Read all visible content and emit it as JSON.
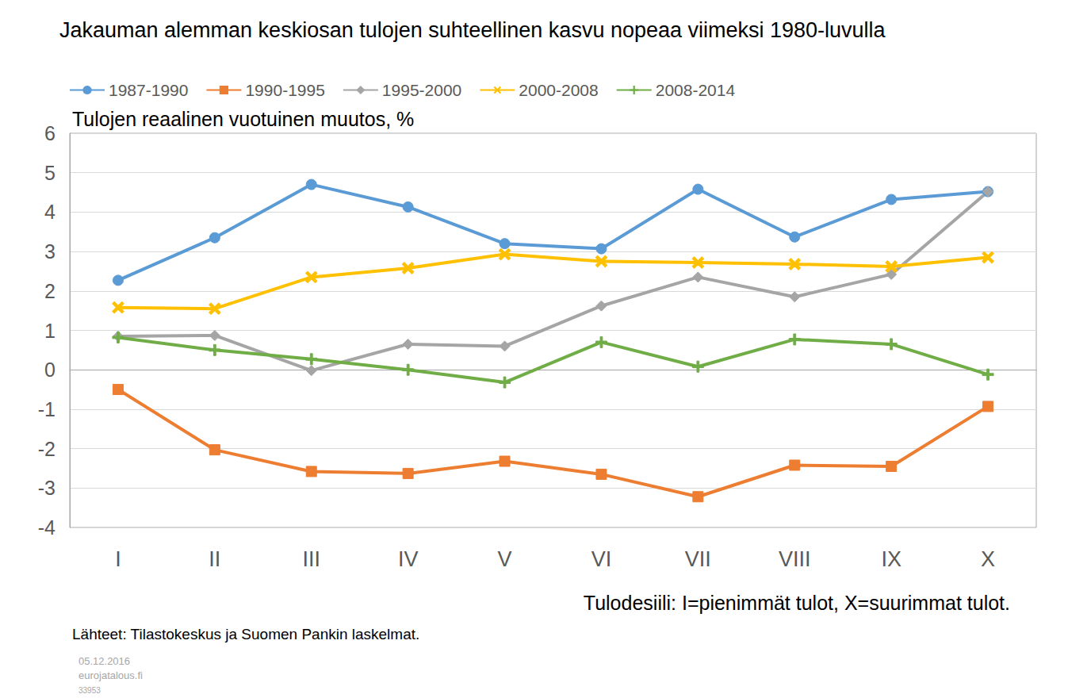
{
  "chart_data": {
    "type": "line",
    "title": "Jakauman alemman keskiosan tulojen suhteellinen kasvu nopeaa viimeksi 1980-luvulla",
    "y_label": "Tulojen reaalinen vuotuinen muutos, %",
    "x_label": "Tulodesiili: I=pienimmät tulot, X=suurimmat tulot.",
    "annotations": [
      "Lähteet: Tilastokeskus ja Suomen Pankin laskelmat.",
      "05.12.2016",
      "eurojatalous.fi",
      "33953"
    ],
    "categories": [
      "I",
      "II",
      "III",
      "IV",
      "V",
      "VI",
      "VII",
      "VIII",
      "IX",
      "X"
    ],
    "series": [
      {
        "name": "1987-1990",
        "color": "#5B9BD5",
        "marker": "circle",
        "values": [
          2.27,
          3.35,
          4.7,
          4.13,
          3.2,
          3.07,
          4.58,
          3.37,
          4.32,
          4.52
        ]
      },
      {
        "name": "1990-1995",
        "color": "#ED7D31",
        "marker": "square",
        "values": [
          -0.5,
          -2.03,
          -2.58,
          -2.63,
          -2.32,
          -2.65,
          -3.22,
          -2.42,
          -2.45,
          -0.93
        ]
      },
      {
        "name": "1995-2000",
        "color": "#A5A5A5",
        "marker": "diamond",
        "values": [
          0.85,
          0.87,
          -0.02,
          0.65,
          0.6,
          1.62,
          2.35,
          1.85,
          2.42,
          4.52
        ]
      },
      {
        "name": "2000-2008",
        "color": "#FFC000",
        "marker": "x",
        "values": [
          1.58,
          1.55,
          2.35,
          2.58,
          2.93,
          2.75,
          2.72,
          2.68,
          2.62,
          2.85
        ]
      },
      {
        "name": "2008-2014",
        "color": "#70AD47",
        "marker": "plus",
        "values": [
          0.82,
          0.5,
          0.27,
          0.0,
          -0.32,
          0.7,
          0.08,
          0.77,
          0.65,
          -0.12
        ]
      }
    ],
    "ylim": [
      -4,
      6
    ],
    "yticks": [
      -4,
      -3,
      -2,
      -1,
      0,
      1,
      2,
      3,
      4,
      5,
      6
    ],
    "grid": true,
    "legend": "top"
  }
}
